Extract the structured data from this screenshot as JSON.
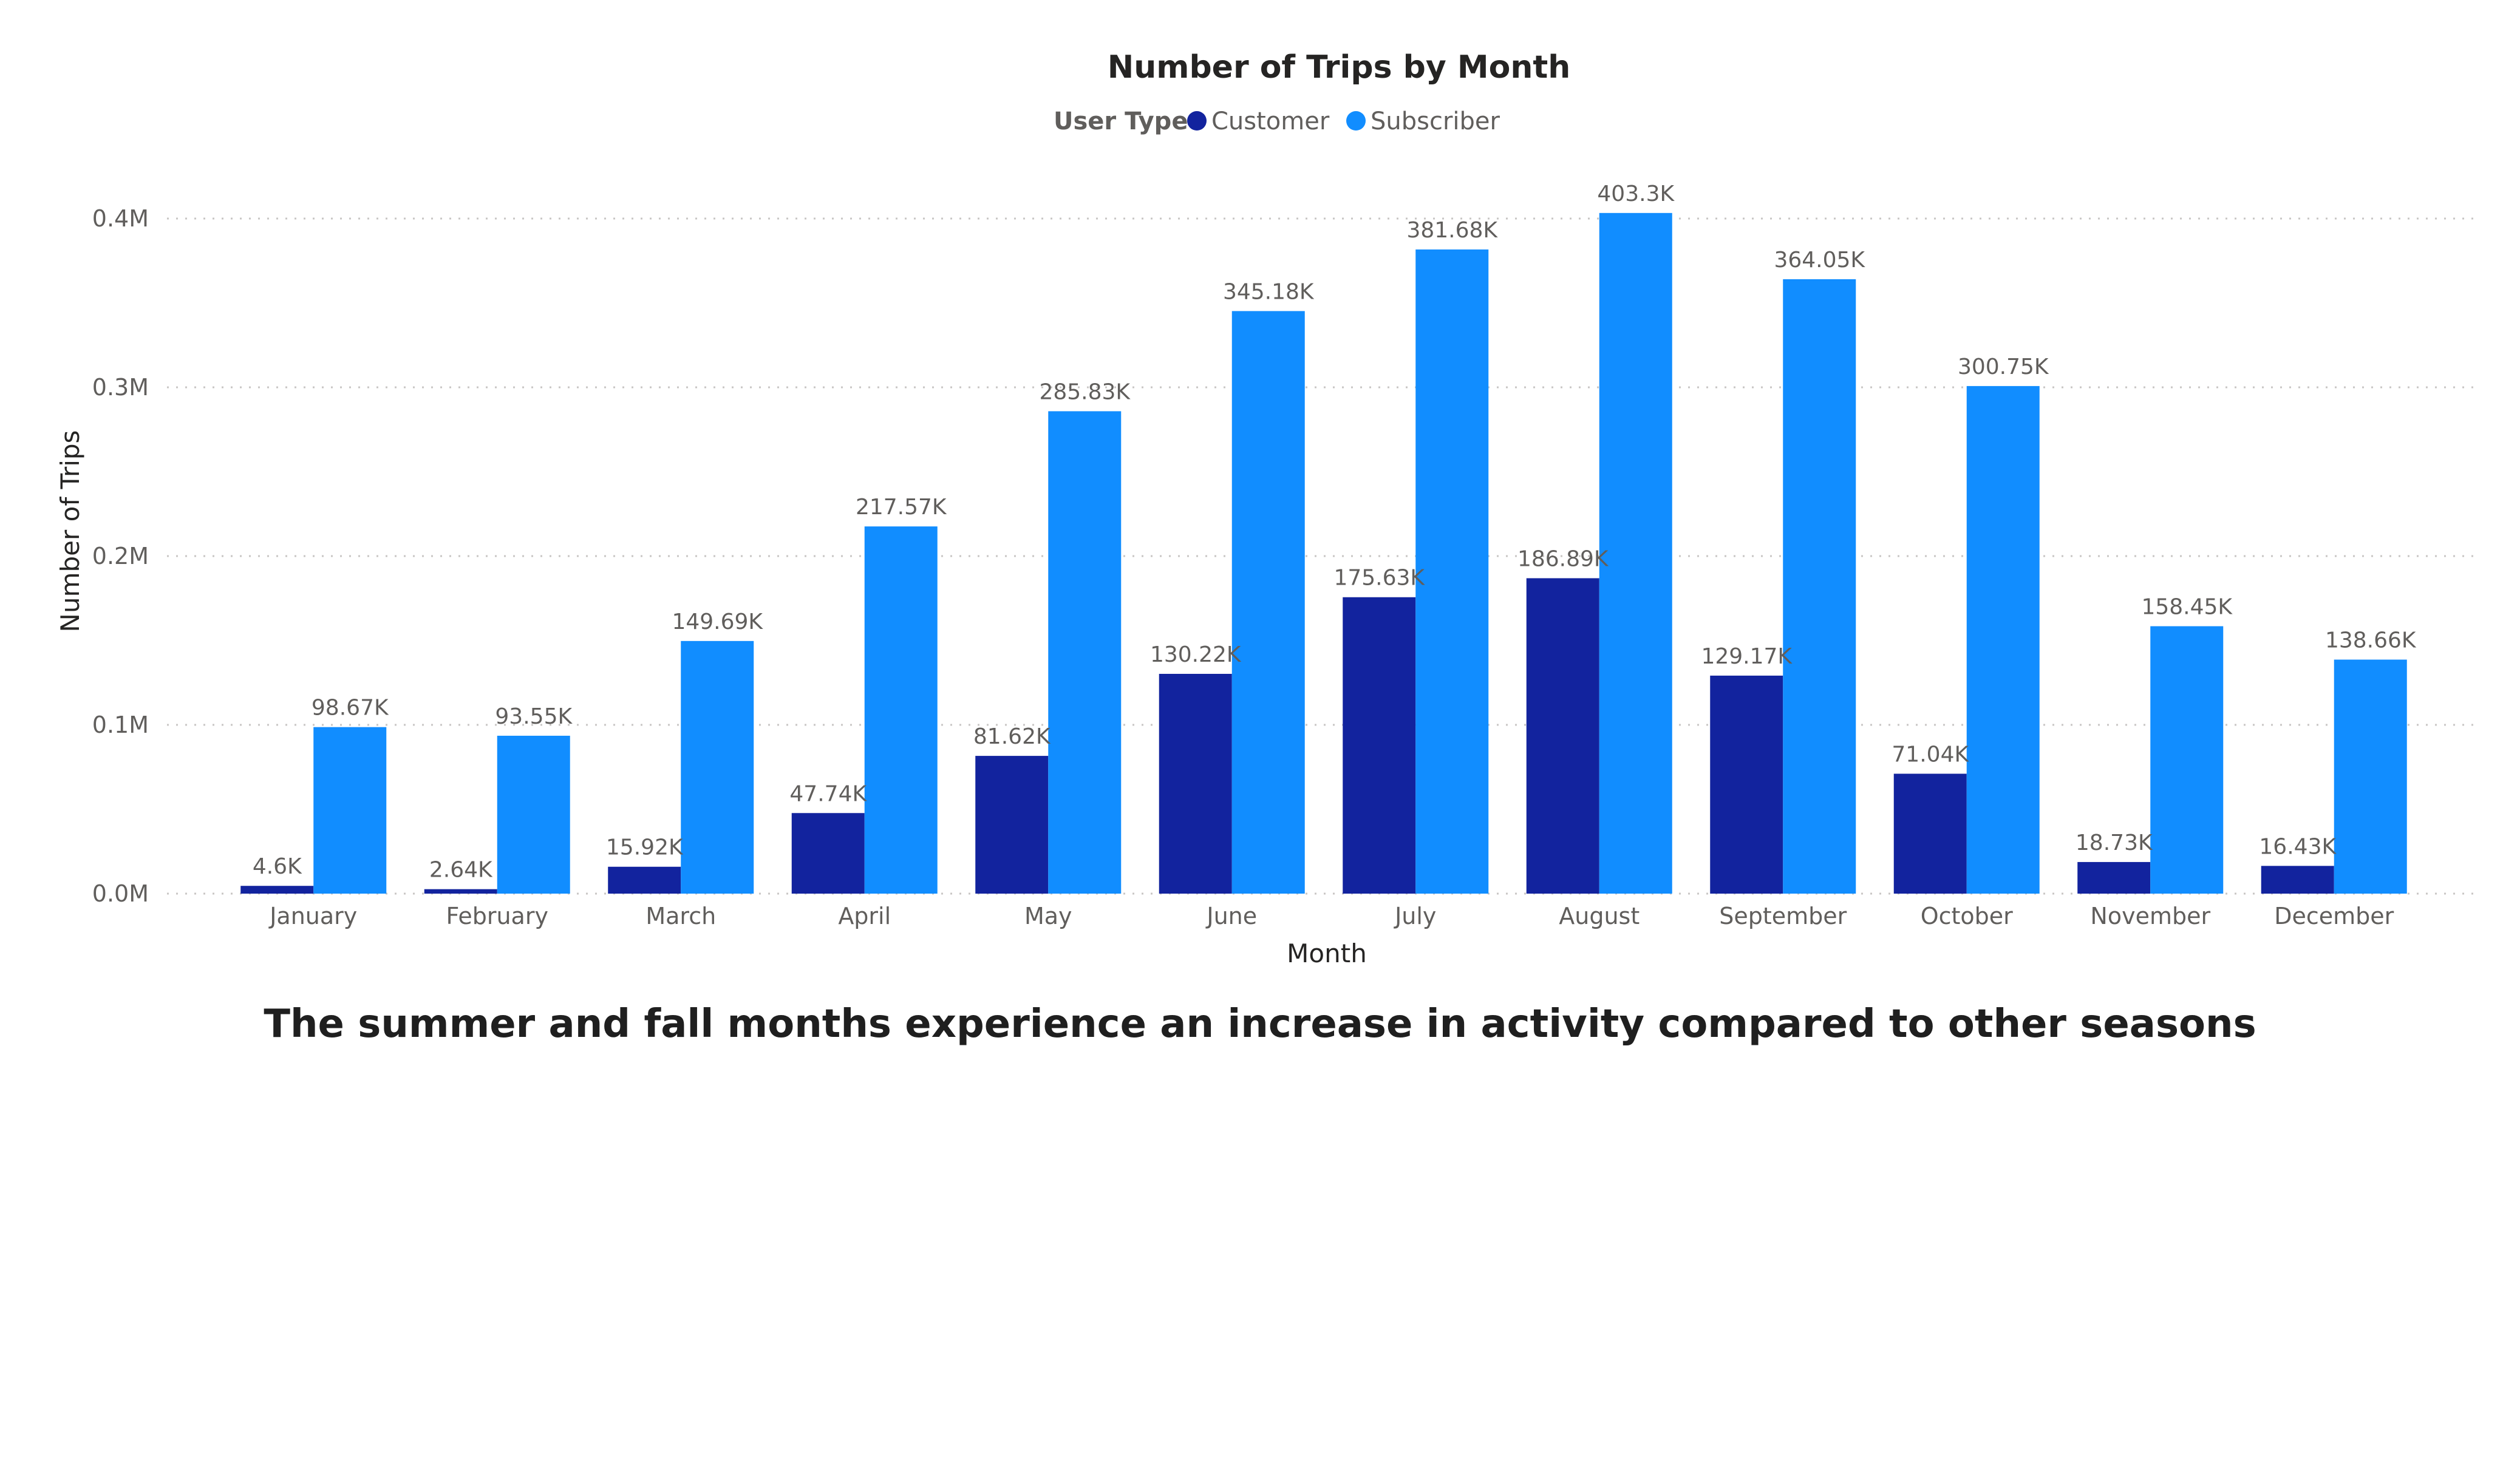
{
  "chart_data": {
    "type": "bar",
    "title": "Number of Trips by Month",
    "legend": {
      "title": "User Type",
      "placement": "top-center"
    },
    "xlabel": "Month",
    "ylabel": "Number of Trips",
    "ylim": [
      0,
      0.4
    ],
    "y_ticks": [
      0,
      0.1,
      0.2,
      0.3,
      0.4
    ],
    "y_tick_labels": [
      "0.0M",
      "0.1M",
      "0.2M",
      "0.3M",
      "0.4M"
    ],
    "grid": true,
    "categories": [
      "January",
      "February",
      "March",
      "April",
      "May",
      "June",
      "July",
      "August",
      "September",
      "October",
      "November",
      "December"
    ],
    "series": [
      {
        "name": "Customer",
        "color": "#12239E",
        "values": [
          0.0046,
          0.00264,
          0.01592,
          0.04774,
          0.08162,
          0.13022,
          0.17563,
          0.18689,
          0.12917,
          0.07104,
          0.01873,
          0.01643
        ],
        "labels": [
          "4.6K",
          "2.64K",
          "15.92K",
          "47.74K",
          "81.62K",
          "130.22K",
          "175.63K",
          "186.89K",
          "129.17K",
          "71.04K",
          "18.73K",
          "16.43K"
        ]
      },
      {
        "name": "Subscriber",
        "color": "#118DFF",
        "values": [
          0.09867,
          0.09355,
          0.14969,
          0.21757,
          0.28583,
          0.34518,
          0.38168,
          0.4033,
          0.36405,
          0.30075,
          0.15845,
          0.13866
        ],
        "labels": [
          "98.67K",
          "93.55K",
          "149.69K",
          "217.57K",
          "285.83K",
          "345.18K",
          "381.68K",
          "403.3K",
          "364.05K",
          "300.75K",
          "158.45K",
          "138.66K"
        ]
      }
    ]
  },
  "caption": "The summer and fall months experience an increase in activity compared to other seasons"
}
